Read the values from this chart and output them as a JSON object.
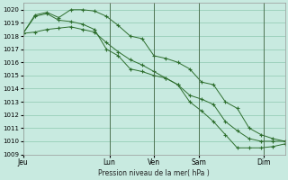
{
  "title": "Pression niveau de la mer( hPa )",
  "bg_color": "#c8eae0",
  "grid_color": "#8ec8b0",
  "line_color": "#2d6e2d",
  "ylim": [
    1009,
    1020.5
  ],
  "yticks": [
    1009,
    1010,
    1011,
    1012,
    1013,
    1014,
    1015,
    1016,
    1017,
    1018,
    1019,
    1020
  ],
  "xtick_labels": [
    "Jeu",
    "Lun",
    "Ven",
    "Sam",
    "Dim"
  ],
  "xtick_pos": [
    0.0,
    0.33,
    0.5,
    0.67,
    0.92
  ],
  "vline_pos": [
    0.33,
    0.5,
    0.67,
    0.92
  ],
  "series": [
    [
      1018.2,
      1019.6,
      1019.8,
      1019.4,
      1020.0,
      1020.0,
      1019.9,
      1019.5,
      1018.8,
      1018.0,
      1017.8,
      1016.5,
      1016.3,
      1016.0,
      1015.5,
      1014.5,
      1014.3,
      1013.0,
      1012.5,
      1011.0,
      1010.5,
      1010.2,
      1010.0
    ],
    [
      1018.2,
      1019.5,
      1019.7,
      1019.2,
      1019.1,
      1018.9,
      1018.5,
      1017.0,
      1016.5,
      1015.5,
      1015.3,
      1015.0,
      1014.8,
      1014.3,
      1013.5,
      1013.2,
      1012.8,
      1011.5,
      1010.8,
      1010.2,
      1010.0,
      1010.0,
      1010.0
    ],
    [
      1018.2,
      1018.3,
      1018.5,
      1018.6,
      1018.7,
      1018.5,
      1018.3,
      1017.5,
      1016.8,
      1016.2,
      1015.8,
      1015.3,
      1014.8,
      1014.3,
      1013.0,
      1012.3,
      1011.5,
      1010.5,
      1009.5,
      1009.5,
      1009.5,
      1009.6,
      1009.8
    ]
  ],
  "n_points": 23,
  "xlim": [
    0,
    1.0
  ]
}
